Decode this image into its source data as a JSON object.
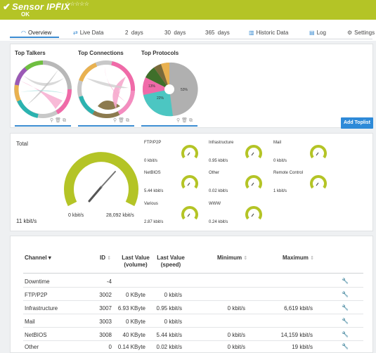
{
  "header": {
    "check_icon": "checkmark-icon",
    "title": "Sensor IPFIX",
    "flag_icon": "flag-icon",
    "stars": "☆☆☆☆☆",
    "status": "OK",
    "color": "#b4c426"
  },
  "tabs": [
    {
      "label": "Overview",
      "icon": "gauge-icon"
    },
    {
      "label": "Live Data",
      "icon": "live-data-icon"
    },
    {
      "label": "2  days",
      "icon": ""
    },
    {
      "label": "30  days",
      "icon": ""
    },
    {
      "label": "365  days",
      "icon": ""
    },
    {
      "label": "Historic Data",
      "icon": "chart-icon"
    },
    {
      "label": "Log",
      "icon": "log-icon"
    },
    {
      "label": "Settings",
      "icon": "gear-icon"
    }
  ],
  "toplists": {
    "items": [
      {
        "title": "Top Talkers"
      },
      {
        "title": "Top Connections"
      },
      {
        "title": "Top Protocols"
      }
    ],
    "protocol_labels": [
      "53%",
      "22%",
      "13%"
    ],
    "add_button": "Add Toplist"
  },
  "gauges": {
    "total_label": "Total",
    "total_value": "11 kbit/s",
    "big_min": "0 kbit/s",
    "big_max": "28,092 kbit/s",
    "mini": [
      {
        "name": "FTP/P2P",
        "value": "0 kbit/s"
      },
      {
        "name": "Infrastructure",
        "value": "0.95 kbit/s"
      },
      {
        "name": "Mail",
        "value": "0 kbit/s"
      },
      {
        "name": "NetBIOS",
        "value": "5.44 kbit/s"
      },
      {
        "name": "Other",
        "value": "0.02 kbit/s"
      },
      {
        "name": "Remote Control",
        "value": "1 kbit/s"
      },
      {
        "name": "Various",
        "value": "2.87 kbit/s"
      },
      {
        "name": "WWW",
        "value": "0.24 kbit/s"
      }
    ]
  },
  "channels": {
    "headers": {
      "channel": "Channel",
      "id": "ID",
      "last_volume": "Last Value (volume)",
      "last_speed": "Last Value (speed)",
      "minimum": "Minimum",
      "maximum": "Maximum"
    },
    "rows": [
      {
        "channel": "Downtime",
        "id": "-4",
        "volume": "",
        "speed": "",
        "min": "",
        "max": ""
      },
      {
        "channel": "FTP/P2P",
        "id": "3002",
        "volume": "0 KByte",
        "speed": "0 kbit/s",
        "min": "",
        "max": ""
      },
      {
        "channel": "Infrastructure",
        "id": "3007",
        "volume": "6.93 KByte",
        "speed": "0.95 kbit/s",
        "min": "0 kbit/s",
        "max": "6,619 kbit/s"
      },
      {
        "channel": "Mail",
        "id": "3003",
        "volume": "0 KByte",
        "speed": "0 kbit/s",
        "min": "",
        "max": ""
      },
      {
        "channel": "NetBIOS",
        "id": "3008",
        "volume": "40 KByte",
        "speed": "5.44 kbit/s",
        "min": "0 kbit/s",
        "max": "14,159 kbit/s"
      },
      {
        "channel": "Other",
        "id": "0",
        "volume": "0.14 KByte",
        "speed": "0.02 kbit/s",
        "min": "0 kbit/s",
        "max": "19 kbit/s"
      }
    ]
  }
}
